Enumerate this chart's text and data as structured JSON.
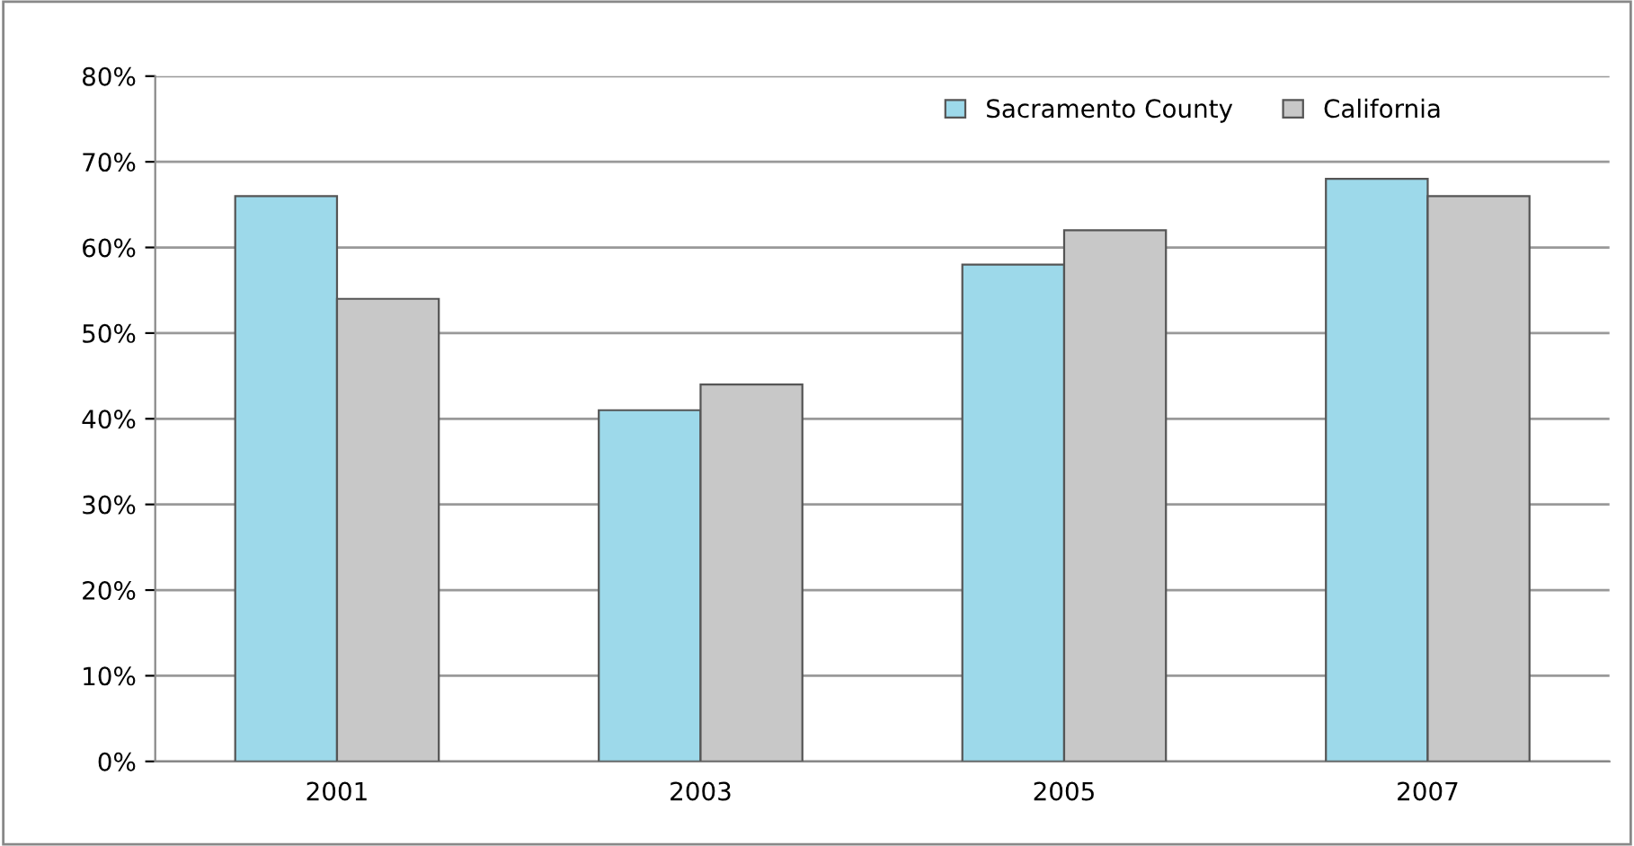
{
  "chart_data": {
    "type": "bar",
    "categories": [
      "2001",
      "2003",
      "2005",
      "2007"
    ],
    "series": [
      {
        "name": "Sacramento County",
        "color": "#9dd9ea",
        "values": [
          66,
          41,
          58,
          68
        ]
      },
      {
        "name": "California",
        "color": "#c8c8c8",
        "values": [
          54,
          44,
          62,
          66
        ]
      }
    ],
    "ylim": [
      0,
      80
    ],
    "yticks": [
      {
        "value": 0,
        "label": "0%"
      },
      {
        "value": 10,
        "label": "10%"
      },
      {
        "value": 20,
        "label": "20%"
      },
      {
        "value": 30,
        "label": "30%"
      },
      {
        "value": 40,
        "label": "40%"
      },
      {
        "value": 50,
        "label": "50%"
      },
      {
        "value": 60,
        "label": "60%"
      },
      {
        "value": 70,
        "label": "70%"
      },
      {
        "value": 80,
        "label": "80%"
      }
    ],
    "grid": "y",
    "legend": "top right"
  }
}
